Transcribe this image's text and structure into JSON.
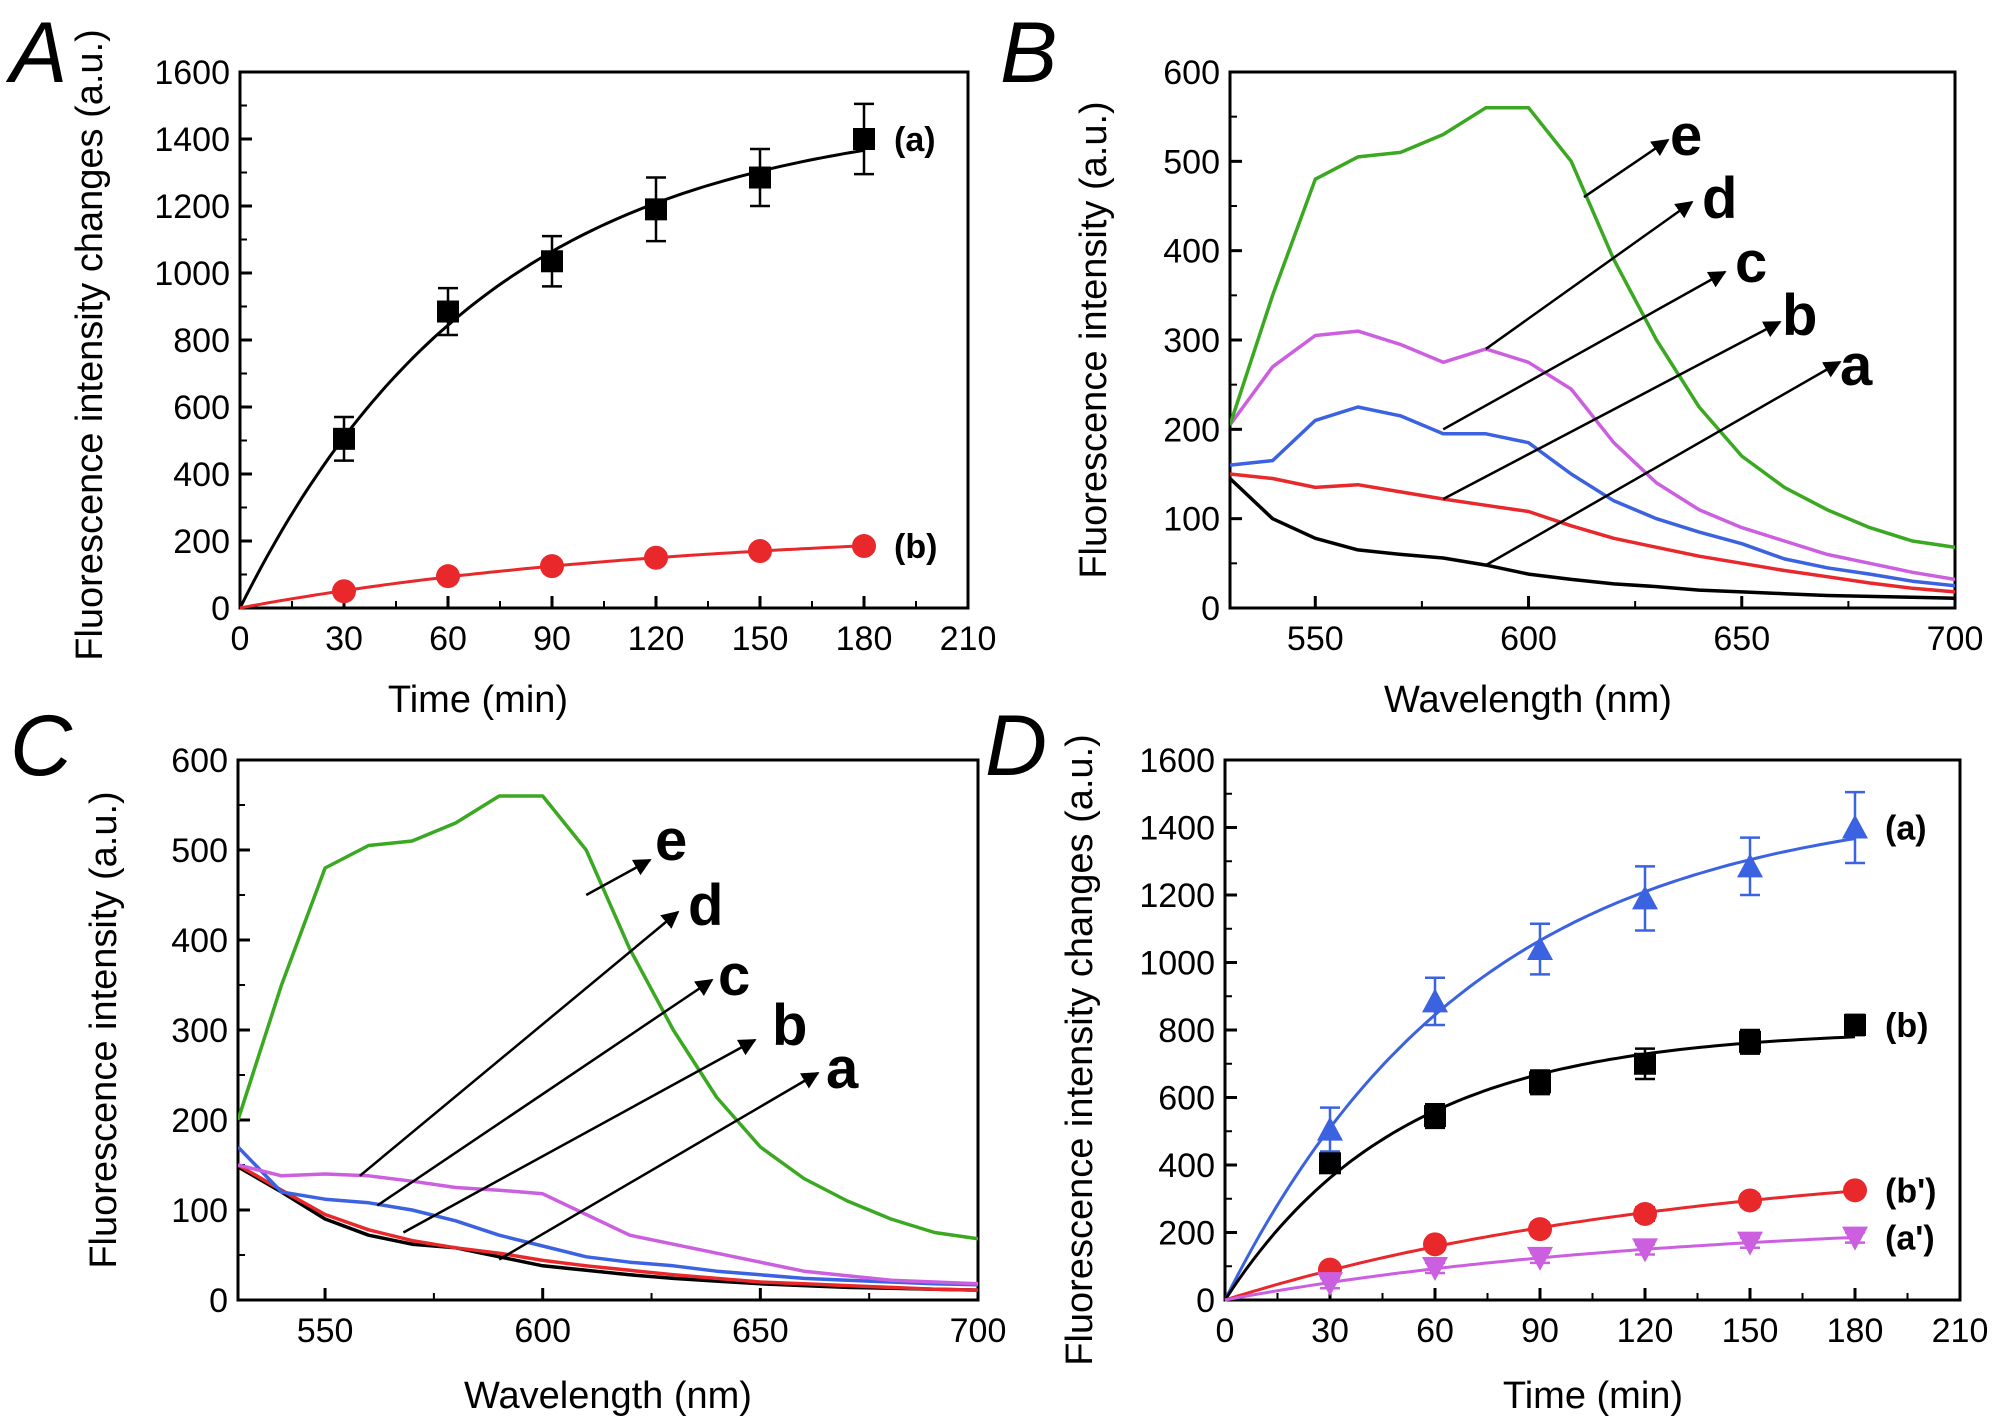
{
  "chart_data": [
    {
      "panel": "A",
      "type": "scatter",
      "xlabel": "Time (min)",
      "ylabel": "Fluorescence intensity changes (a.u.)",
      "xlim": [
        0,
        210
      ],
      "ylim": [
        0,
        1600
      ],
      "xticks": [
        "0",
        "30",
        "60",
        "90",
        "120",
        "150",
        "180",
        "210"
      ],
      "yticks": [
        "0",
        "200",
        "400",
        "600",
        "800",
        "1000",
        "1200",
        "1400",
        "1600"
      ],
      "series": [
        {
          "name": "(a)",
          "color": "#000000",
          "marker": "square",
          "fit": true,
          "x": [
            30,
            60,
            90,
            120,
            150,
            180
          ],
          "y": [
            505,
            885,
            1035,
            1190,
            1285,
            1400
          ],
          "err": [
            65,
            70,
            75,
            95,
            85,
            105
          ]
        },
        {
          "name": "(b)",
          "color": "#e8282b",
          "marker": "circle",
          "fit": true,
          "x": [
            30,
            60,
            90,
            120,
            150,
            180
          ],
          "y": [
            50,
            95,
            125,
            150,
            170,
            185
          ],
          "err": [
            0,
            0,
            0,
            0,
            0,
            0
          ]
        }
      ]
    },
    {
      "panel": "B",
      "type": "line",
      "xlabel": "Wavelength (nm)",
      "ylabel": "Fluorescence intensity (a.u.)",
      "xlim": [
        530,
        700
      ],
      "ylim": [
        0,
        600
      ],
      "xticks": [
        "550",
        "600",
        "650",
        "700"
      ],
      "yticks": [
        "0",
        "100",
        "200",
        "300",
        "400",
        "500",
        "600"
      ],
      "series": [
        {
          "name": "a",
          "color": "#000000",
          "x": [
            530,
            540,
            550,
            560,
            570,
            580,
            590,
            600,
            610,
            620,
            630,
            640,
            650,
            660,
            670,
            680,
            690,
            700
          ],
          "y": [
            145,
            100,
            78,
            65,
            60,
            56,
            48,
            38,
            32,
            27,
            24,
            20,
            18,
            16,
            14,
            13,
            12,
            11
          ]
        },
        {
          "name": "b",
          "color": "#e8282b",
          "x": [
            530,
            540,
            550,
            560,
            570,
            580,
            590,
            600,
            610,
            620,
            630,
            640,
            650,
            660,
            670,
            680,
            690,
            700
          ],
          "y": [
            150,
            145,
            135,
            138,
            130,
            122,
            115,
            108,
            92,
            78,
            68,
            58,
            50,
            42,
            35,
            28,
            22,
            18
          ]
        },
        {
          "name": "c",
          "color": "#3b62e0",
          "x": [
            530,
            540,
            550,
            560,
            570,
            580,
            590,
            600,
            610,
            620,
            630,
            640,
            650,
            660,
            670,
            680,
            690,
            700
          ],
          "y": [
            160,
            165,
            210,
            225,
            215,
            195,
            195,
            185,
            150,
            120,
            100,
            85,
            72,
            55,
            45,
            38,
            30,
            25
          ]
        },
        {
          "name": "d",
          "color": "#cc5fe0",
          "x": [
            530,
            540,
            550,
            560,
            570,
            580,
            590,
            600,
            610,
            620,
            630,
            640,
            650,
            660,
            670,
            680,
            690,
            700
          ],
          "y": [
            205,
            270,
            305,
            310,
            295,
            275,
            290,
            275,
            245,
            185,
            140,
            110,
            90,
            75,
            60,
            50,
            40,
            32
          ]
        },
        {
          "name": "e",
          "color": "#3aa821",
          "x": [
            530,
            540,
            550,
            560,
            570,
            580,
            590,
            600,
            610,
            620,
            630,
            640,
            650,
            660,
            670,
            680,
            690,
            700
          ],
          "y": [
            205,
            350,
            480,
            505,
            510,
            530,
            560,
            560,
            500,
            390,
            300,
            225,
            170,
            135,
            110,
            90,
            75,
            68
          ]
        }
      ]
    },
    {
      "panel": "C",
      "type": "line",
      "xlabel": "Wavelength (nm)",
      "ylabel": "Fluorescence intensity (a.u.)",
      "xlim": [
        530,
        700
      ],
      "ylim": [
        0,
        600
      ],
      "xticks": [
        "550",
        "600",
        "650",
        "700"
      ],
      "yticks": [
        "0",
        "100",
        "200",
        "300",
        "400",
        "500",
        "600"
      ],
      "series": [
        {
          "name": "a",
          "color": "#000000",
          "x": [
            530,
            540,
            550,
            560,
            570,
            580,
            590,
            600,
            610,
            620,
            630,
            640,
            650,
            660,
            670,
            680,
            690,
            700
          ],
          "y": [
            148,
            120,
            90,
            72,
            62,
            58,
            48,
            38,
            33,
            28,
            24,
            21,
            18,
            16,
            14,
            13,
            12,
            11
          ]
        },
        {
          "name": "b",
          "color": "#e8282b",
          "x": [
            530,
            540,
            550,
            560,
            570,
            580,
            590,
            600,
            610,
            620,
            630,
            640,
            650,
            660,
            670,
            680,
            690,
            700
          ],
          "y": [
            150,
            122,
            95,
            78,
            66,
            58,
            52,
            44,
            38,
            33,
            28,
            24,
            20,
            18,
            16,
            14,
            12,
            11
          ]
        },
        {
          "name": "c",
          "color": "#3b62e0",
          "x": [
            530,
            540,
            550,
            560,
            570,
            580,
            590,
            600,
            610,
            620,
            630,
            640,
            650,
            660,
            670,
            680,
            690,
            700
          ],
          "y": [
            170,
            120,
            112,
            108,
            100,
            88,
            72,
            60,
            48,
            42,
            38,
            32,
            28,
            24,
            22,
            20,
            18,
            17
          ]
        },
        {
          "name": "d",
          "color": "#cc5fe0",
          "x": [
            530,
            540,
            550,
            560,
            570,
            580,
            590,
            600,
            610,
            620,
            630,
            640,
            650,
            660,
            670,
            680,
            690,
            700
          ],
          "y": [
            150,
            138,
            140,
            138,
            132,
            125,
            122,
            118,
            95,
            72,
            62,
            52,
            42,
            32,
            27,
            22,
            20,
            18
          ]
        },
        {
          "name": "e",
          "color": "#3aa821",
          "x": [
            530,
            540,
            550,
            560,
            570,
            580,
            590,
            600,
            610,
            620,
            630,
            640,
            650,
            660,
            670,
            680,
            690,
            700
          ],
          "y": [
            200,
            350,
            480,
            505,
            510,
            530,
            560,
            560,
            500,
            390,
            300,
            225,
            170,
            135,
            110,
            90,
            75,
            68
          ]
        }
      ]
    },
    {
      "panel": "D",
      "type": "scatter",
      "xlabel": "Time (min)",
      "ylabel": "Fluorescence intensity changes (a.u.)",
      "xlim": [
        0,
        210
      ],
      "ylim": [
        0,
        1600
      ],
      "xticks": [
        "0",
        "30",
        "60",
        "90",
        "120",
        "150",
        "180",
        "210"
      ],
      "yticks": [
        "0",
        "200",
        "400",
        "600",
        "800",
        "1000",
        "1200",
        "1400",
        "1600"
      ],
      "series": [
        {
          "name": "(a)",
          "color": "#3b62e0",
          "marker": "triangle-up",
          "fit": true,
          "x": [
            30,
            60,
            90,
            120,
            150,
            180
          ],
          "y": [
            505,
            885,
            1040,
            1190,
            1285,
            1400
          ],
          "err": [
            65,
            70,
            75,
            95,
            85,
            105
          ]
        },
        {
          "name": "(b)",
          "color": "#000000",
          "marker": "square",
          "fit": true,
          "x": [
            30,
            60,
            90,
            120,
            150,
            180
          ],
          "y": [
            405,
            545,
            645,
            700,
            765,
            815
          ],
          "err": [
            20,
            35,
            35,
            45,
            35,
            30
          ]
        },
        {
          "name": "(b')",
          "color": "#e8282b",
          "marker": "circle",
          "fit": true,
          "x": [
            30,
            60,
            90,
            120,
            150,
            180
          ],
          "y": [
            90,
            165,
            210,
            255,
            295,
            325
          ],
          "err": [
            15,
            15,
            18,
            20,
            18,
            15
          ]
        },
        {
          "name": "(a')",
          "color": "#cc5fe0",
          "marker": "triangle-down",
          "fit": true,
          "x": [
            30,
            60,
            90,
            120,
            150,
            180
          ],
          "y": [
            50,
            95,
            125,
            150,
            170,
            185
          ],
          "err": [
            15,
            15,
            15,
            15,
            15,
            15
          ]
        }
      ]
    }
  ]
}
